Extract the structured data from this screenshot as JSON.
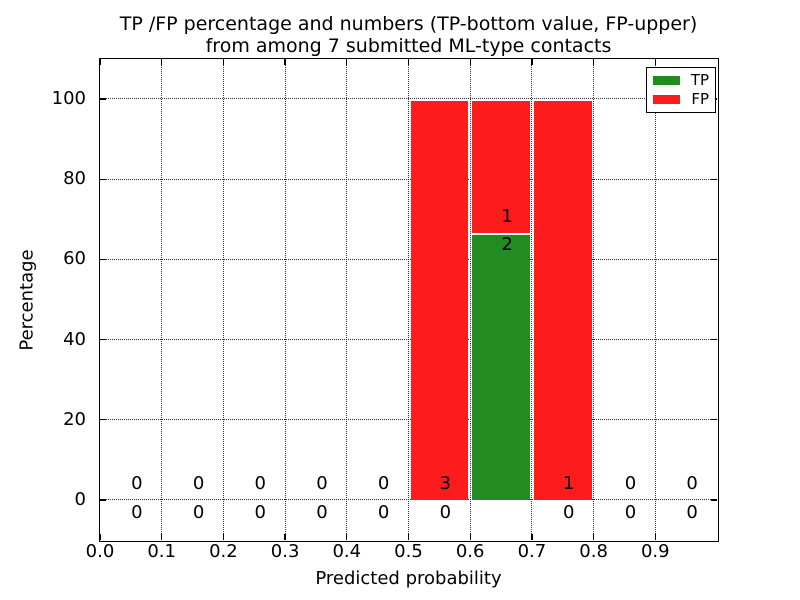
{
  "chart_data": {
    "type": "bar",
    "stacked": true,
    "title_lines": [
      "TP /FP percentage and numbers (TP-bottom value, FP-upper)",
      "from among 7 submitted ML-type contacts"
    ],
    "xlabel": "Predicted probability",
    "ylabel": "Percentage",
    "xlim": [
      0.0,
      1.0
    ],
    "ylim": [
      -10,
      110
    ],
    "x_ticks": [
      {
        "value": 0.0,
        "label": "0.0"
      },
      {
        "value": 0.1,
        "label": "0.1"
      },
      {
        "value": 0.2,
        "label": "0.2"
      },
      {
        "value": 0.3,
        "label": "0.3"
      },
      {
        "value": 0.4,
        "label": "0.4"
      },
      {
        "value": 0.5,
        "label": "0.5"
      },
      {
        "value": 0.6,
        "label": "0.6"
      },
      {
        "value": 0.7,
        "label": "0.7"
      },
      {
        "value": 0.8,
        "label": "0.8"
      },
      {
        "value": 0.9,
        "label": "0.9"
      }
    ],
    "y_ticks": [
      {
        "value": 0,
        "label": "0"
      },
      {
        "value": 20,
        "label": "20"
      },
      {
        "value": 40,
        "label": "40"
      },
      {
        "value": 60,
        "label": "60"
      },
      {
        "value": 80,
        "label": "80"
      },
      {
        "value": 100,
        "label": "100"
      }
    ],
    "grid_style": "dotted",
    "total_submitted_contacts": 7,
    "bins": [
      {
        "x0": 0.0,
        "x1": 0.1,
        "tp_count": 0,
        "fp_count": 0,
        "tp_pct": 0,
        "fp_pct": 0
      },
      {
        "x0": 0.1,
        "x1": 0.2,
        "tp_count": 0,
        "fp_count": 0,
        "tp_pct": 0,
        "fp_pct": 0
      },
      {
        "x0": 0.2,
        "x1": 0.3,
        "tp_count": 0,
        "fp_count": 0,
        "tp_pct": 0,
        "fp_pct": 0
      },
      {
        "x0": 0.3,
        "x1": 0.4,
        "tp_count": 0,
        "fp_count": 0,
        "tp_pct": 0,
        "fp_pct": 0
      },
      {
        "x0": 0.4,
        "x1": 0.5,
        "tp_count": 0,
        "fp_count": 0,
        "tp_pct": 0,
        "fp_pct": 0
      },
      {
        "x0": 0.5,
        "x1": 0.6,
        "tp_count": 0,
        "fp_count": 3,
        "tp_pct": 0,
        "fp_pct": 100
      },
      {
        "x0": 0.6,
        "x1": 0.7,
        "tp_count": 2,
        "fp_count": 1,
        "tp_pct": 66.7,
        "fp_pct": 33.3
      },
      {
        "x0": 0.7,
        "x1": 0.8,
        "tp_count": 0,
        "fp_count": 1,
        "tp_pct": 0,
        "fp_pct": 100
      },
      {
        "x0": 0.8,
        "x1": 0.9,
        "tp_count": 0,
        "fp_count": 0,
        "tp_pct": 0,
        "fp_pct": 0
      },
      {
        "x0": 0.9,
        "x1": 1.0,
        "tp_count": 0,
        "fp_count": 0,
        "tp_pct": 0,
        "fp_pct": 0
      }
    ],
    "legend": {
      "position": "upper right",
      "entries": [
        {
          "name": "TP",
          "color": "#228b22"
        },
        {
          "name": "FP",
          "color": "#fc1c1c"
        }
      ]
    },
    "colors": {
      "tp": "#228b22",
      "fp": "#fc1c1c",
      "bar_edge": "#ffffff",
      "axes": "#000000",
      "background": "#ffffff"
    }
  }
}
